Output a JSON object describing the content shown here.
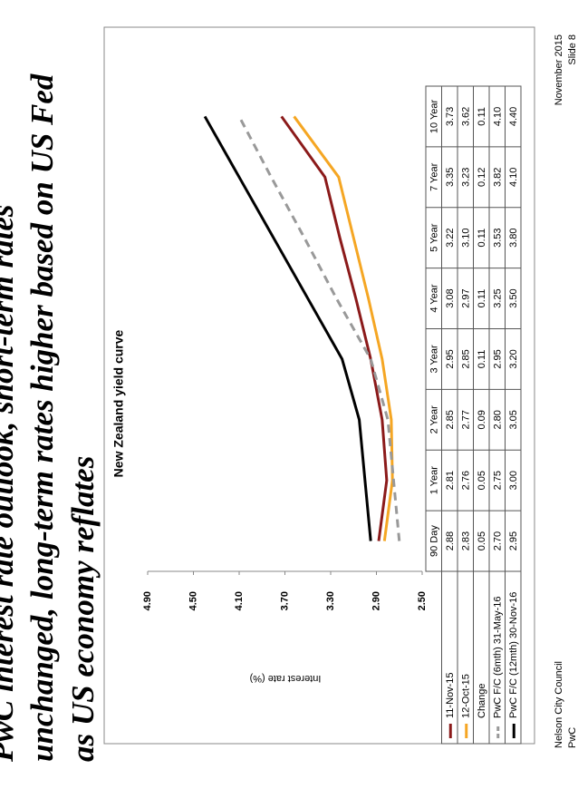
{
  "title_lines": [
    "PwC interest rate outlook, short-term rates",
    "unchanged, long-term rates higher based on US Fed",
    "as US economy reflates"
  ],
  "footer": {
    "organisation": "Nelson City Council",
    "source": "PwC",
    "date": "November 2015",
    "slide": "Slide 8"
  },
  "chart_data": {
    "type": "line",
    "title": "New Zealand yield curve",
    "y_label": "Interest rate (%)",
    "categories": [
      "90 Day",
      "1 Year",
      "2 Year",
      "3 Year",
      "4 Year",
      "5 Year",
      "7 Year",
      "10 Year"
    ],
    "ylim": [
      2.5,
      4.9
    ],
    "yticks": [
      {
        "value": 2.5,
        "label": "2.50"
      },
      {
        "value": 2.9,
        "label": "2.90"
      },
      {
        "value": 3.3,
        "label": "3.30"
      },
      {
        "value": 3.7,
        "label": "3.70"
      },
      {
        "value": 4.1,
        "label": "4.10"
      },
      {
        "value": 4.5,
        "label": "4.50"
      },
      {
        "value": 4.9,
        "label": "4.90"
      }
    ],
    "series": [
      {
        "name": "11-Nov-15",
        "color": "#8b1a1a",
        "dashed": false,
        "values": [
          2.88,
          2.81,
          2.85,
          2.95,
          3.08,
          3.22,
          3.35,
          3.73
        ],
        "value_labels": [
          "2.88",
          "2.81",
          "2.85",
          "2.95",
          "3.08",
          "3.22",
          "3.35",
          "3.73"
        ]
      },
      {
        "name": "12-Oct-15",
        "color": "#f5a623",
        "dashed": false,
        "values": [
          2.83,
          2.76,
          2.77,
          2.85,
          2.97,
          3.1,
          3.23,
          3.62
        ],
        "value_labels": [
          "2.83",
          "2.76",
          "2.77",
          "2.85",
          "2.97",
          "3.10",
          "3.23",
          "3.62"
        ]
      },
      {
        "name": "PwC F/C (6mth) 31-May-16",
        "color": "#999999",
        "dashed": true,
        "values": [
          2.7,
          2.75,
          2.8,
          2.95,
          3.25,
          3.53,
          3.82,
          4.1
        ],
        "value_labels": [
          "2.70",
          "2.75",
          "2.80",
          "2.95",
          "3.25",
          "3.53",
          "3.82",
          "4.10"
        ]
      },
      {
        "name": "PwC F/C (12mth) 30-Nov-16",
        "color": "#000000",
        "dashed": false,
        "values": [
          2.95,
          3.0,
          3.05,
          3.2,
          3.5,
          3.8,
          4.1,
          4.4
        ],
        "value_labels": [
          "2.95",
          "3.00",
          "3.05",
          "3.20",
          "3.50",
          "3.80",
          "4.10",
          "4.40"
        ]
      }
    ],
    "change": {
      "name": "Change",
      "values": [
        0.05,
        0.05,
        0.09,
        0.11,
        0.11,
        0.11,
        0.12,
        0.11
      ],
      "value_labels": [
        "0.05",
        "0.05",
        "0.09",
        "0.11",
        "0.11",
        "0.11",
        "0.12",
        "0.11"
      ]
    }
  }
}
